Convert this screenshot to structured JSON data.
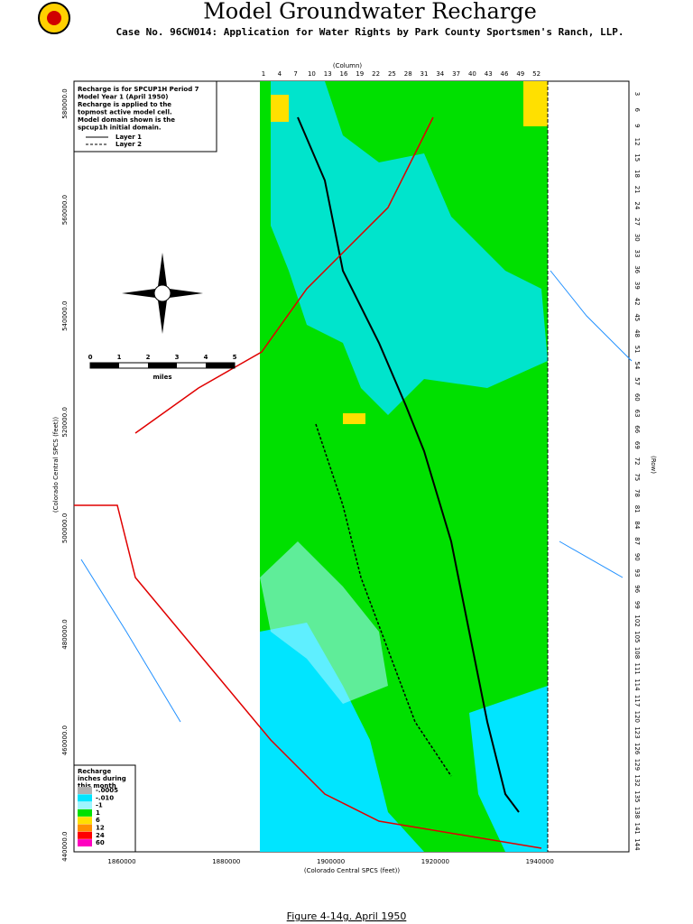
{
  "header": {
    "title": "Model Groundwater Recharge",
    "subtitle": "Case No. 96CW014: Application for Water Rights by Park County Sportsmen's Ranch, LLP."
  },
  "note": {
    "lines": [
      "Recharge is for SPCUP1H Period 7",
      "Model Year 1 (April 1950)",
      "Recharge is applied to the",
      "topmost active model cell.",
      "Model domain shown is the",
      "spcup1h initial domain."
    ],
    "layers": [
      "Layer 1",
      "Layer 2"
    ]
  },
  "columns": {
    "label": "(Column)",
    "ticks": [
      "1",
      "4",
      "7",
      "10",
      "13",
      "16",
      "19",
      "22",
      "25",
      "28",
      "31",
      "34",
      "37",
      "40",
      "43",
      "46",
      "49",
      "52"
    ]
  },
  "rows": {
    "label": "(Row)",
    "ticks": [
      "3",
      "6",
      "9",
      "12",
      "15",
      "18",
      "21",
      "24",
      "27",
      "30",
      "33",
      "36",
      "39",
      "42",
      "45",
      "48",
      "51",
      "54",
      "57",
      "60",
      "63",
      "66",
      "69",
      "72",
      "75",
      "78",
      "81",
      "84",
      "87",
      "90",
      "93",
      "96",
      "99",
      "102",
      "105",
      "108",
      "111",
      "114",
      "117",
      "120",
      "123",
      "126",
      "129",
      "132",
      "135",
      "138",
      "141",
      "144"
    ]
  },
  "y_axis": {
    "label": "(Colorado Central SPCS (feet))",
    "ticks": [
      "580000.0",
      "560000.0",
      "540000.0",
      "520000.0",
      "500000.0",
      "480000.0",
      "460000.0",
      "440000.0"
    ]
  },
  "x_axis": {
    "label": "(Colorado Central SPCS (feet))",
    "ticks": [
      "1860000",
      "1880000",
      "1900000",
      "1920000",
      "1940000"
    ]
  },
  "scale": {
    "ticks": [
      "0",
      "1",
      "2",
      "3",
      "4",
      "5"
    ],
    "unit": "miles"
  },
  "legend": {
    "title": [
      "Recharge",
      "inches during",
      "this month"
    ],
    "items": [
      {
        "label": "-.0005",
        "color": "#b0b0b0"
      },
      {
        "label": "-.010",
        "color": "#00e5ff"
      },
      {
        "label": "-1",
        "color": "#9ff5ff"
      },
      {
        "label": "1",
        "color": "#00e000"
      },
      {
        "label": "6",
        "color": "#ffe000"
      },
      {
        "label": "12",
        "color": "#ff9000"
      },
      {
        "label": "24",
        "color": "#ff0000"
      },
      {
        "label": "60",
        "color": "#ff00c0"
      }
    ]
  },
  "caption": "Figure 4-14g.  April 1950"
}
